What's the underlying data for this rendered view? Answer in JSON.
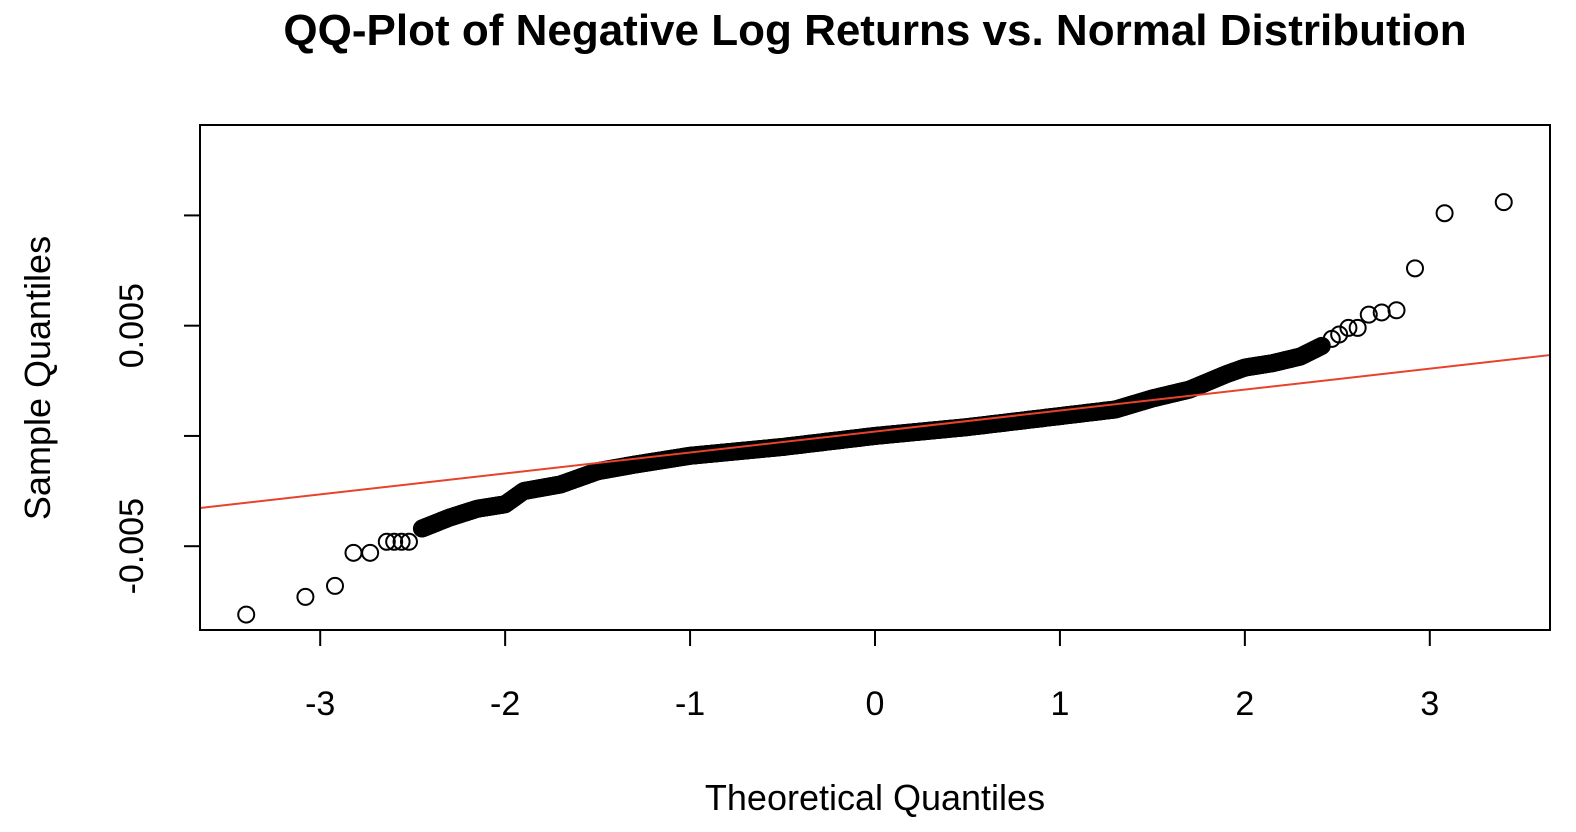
{
  "chart_data": {
    "type": "scatter",
    "title": "QQ-Plot of Negative Log Returns vs. Normal Distribution",
    "xlabel": "Theoretical Quantiles",
    "ylabel": "Sample Quantiles",
    "xlim": [
      -3.65,
      3.65
    ],
    "ylim": [
      -0.0088,
      0.0141
    ],
    "x_ticks": [
      -3,
      -2,
      -1,
      0,
      1,
      2,
      3
    ],
    "x_tick_labels": [
      "-3",
      "-2",
      "-1",
      "0",
      "1",
      "2",
      "3"
    ],
    "y_ticks": [
      -0.005,
      0,
      0.005,
      0.01
    ],
    "y_tick_labels": [
      "-0.005",
      "",
      "0.005",
      ""
    ],
    "grid": false,
    "legend": "none",
    "colors": {
      "points": "#000000",
      "reference_line": "#e8412c"
    },
    "reference_line": {
      "intercept": 0.0002,
      "slope": 0.00095
    },
    "tail_points": {
      "x": [
        -3.4,
        -3.08,
        -2.92,
        -2.82,
        -2.73,
        -2.64,
        -2.6,
        -2.56,
        -2.52,
        2.47,
        2.51,
        2.56,
        2.61,
        2.67,
        2.74,
        2.82,
        2.92,
        3.08,
        3.4
      ],
      "y": [
        -0.0081,
        -0.0073,
        -0.0068,
        -0.0053,
        -0.0053,
        -0.0048,
        -0.0048,
        -0.0048,
        -0.0048,
        0.0044,
        0.0046,
        0.0049,
        0.0049,
        0.0055,
        0.0056,
        0.0057,
        0.0076,
        0.0101,
        0.0106
      ]
    },
    "body_curve": {
      "x": [
        -2.45,
        -2.3,
        -2.15,
        -2.0,
        -1.9,
        -1.7,
        -1.5,
        -1.3,
        -1.0,
        -0.5,
        0.0,
        0.5,
        1.0,
        1.3,
        1.5,
        1.7,
        1.9,
        2.0,
        2.15,
        2.3,
        2.42
      ],
      "y": [
        -0.0042,
        -0.0037,
        -0.0033,
        -0.0031,
        -0.0025,
        -0.0022,
        -0.0016,
        -0.0013,
        -0.0009,
        -0.0005,
        0.0,
        0.0004,
        0.0009,
        0.0012,
        0.0017,
        0.0021,
        0.0028,
        0.0031,
        0.0033,
        0.0036,
        0.0041
      ]
    }
  }
}
